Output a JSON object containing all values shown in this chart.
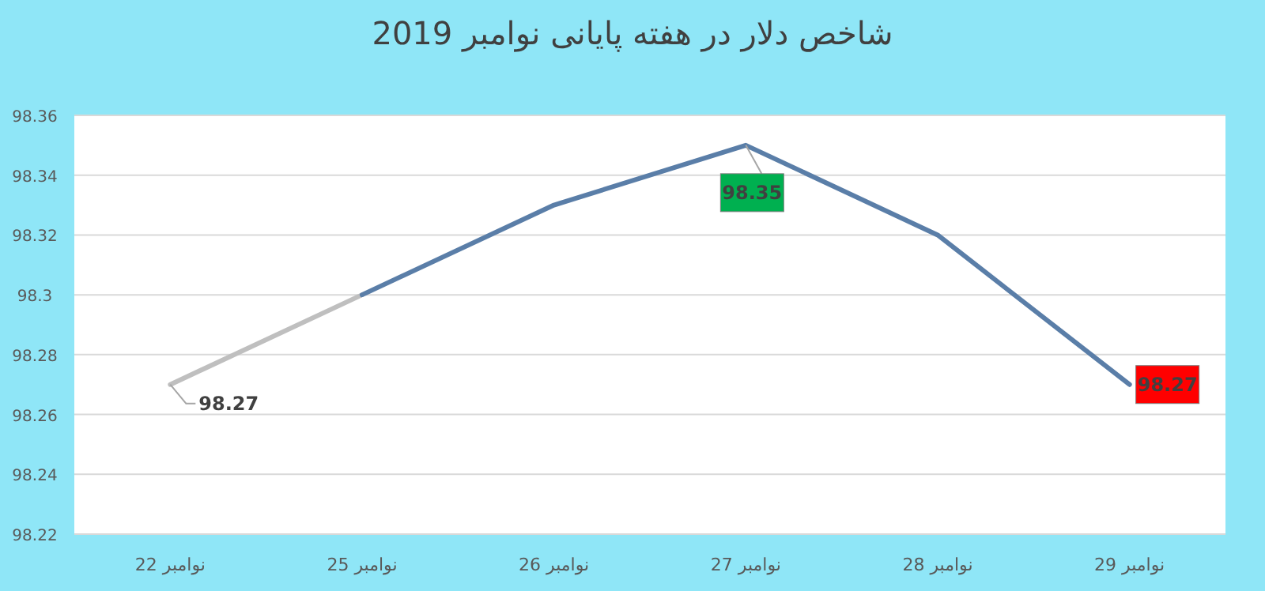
{
  "chart_data": {
    "type": "line",
    "title": "شاخص دلار در هفته پایانی نوامبر 2019",
    "categories": [
      "نوامبر 22",
      "نوامبر 25",
      "نوامبر 26",
      "نوامبر 27",
      "نوامبر 28",
      "نوامبر 29"
    ],
    "series": [
      {
        "color": "#bfbfbf",
        "values": [
          98.27,
          98.3,
          null,
          null,
          null,
          null
        ],
        "value_labels": [
          "98.27",
          null,
          null,
          null,
          null,
          null
        ]
      },
      {
        "color": "#5a7ea8",
        "values": [
          null,
          98.3,
          98.33,
          98.35,
          98.32,
          98.27
        ],
        "value_labels": [
          null,
          null,
          null,
          "98.35",
          null,
          "98.27"
        ]
      }
    ],
    "ylim": [
      98.22,
      98.36
    ],
    "yticks": [
      98.22,
      98.24,
      98.26,
      98.28,
      98.3,
      98.32,
      98.34,
      98.36
    ],
    "grid": "y",
    "marker": "none",
    "line_style": "solid"
  }
}
